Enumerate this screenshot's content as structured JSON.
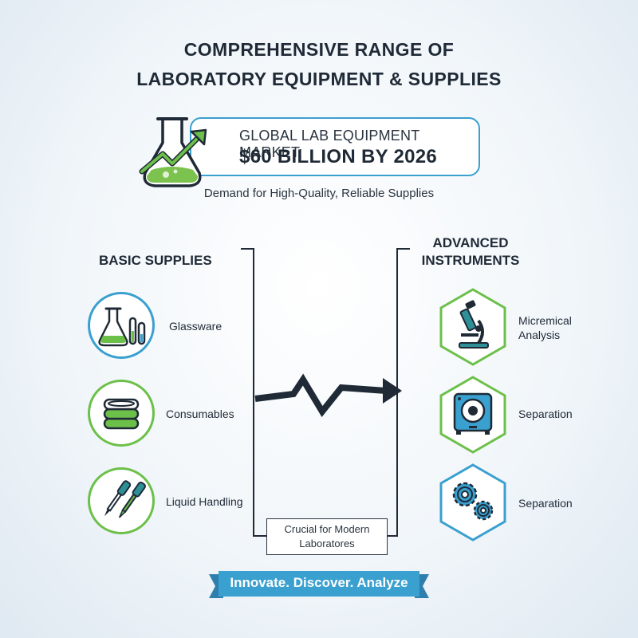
{
  "title": {
    "line1": "COMPREHENSIVE RANGE OF",
    "line2": "LABORATORY EQUIPMENT & SUPPLIES"
  },
  "market": {
    "label": "GLOBAL LAB EQUIPMENT MARKET:",
    "value": "$60 BILLION BY 2026"
  },
  "demand": "Demand for High-Quality, Reliable Supplies",
  "basic": {
    "heading": "BASIC SUPPLIES",
    "items": [
      {
        "label": "Glassware",
        "icon": "glassware-icon"
      },
      {
        "label": "Consumables",
        "icon": "consumables-icon"
      },
      {
        "label": "Liquid Handling",
        "icon": "pipette-icon"
      }
    ]
  },
  "advanced": {
    "heading_line1": "ADVANCED",
    "heading_line2": "INSTRUMENTS",
    "items": [
      {
        "label_line1": "Micremical",
        "label_line2": "Analysis",
        "icon": "microscope-icon"
      },
      {
        "label_line1": "Separation",
        "label_line2": "",
        "icon": "centrifuge-icon"
      },
      {
        "label_line1": "Separation",
        "label_line2": "",
        "icon": "gears-icon"
      }
    ]
  },
  "footer_note": {
    "line1": "Crucial for Modern",
    "line2": "Laboratores"
  },
  "ribbon": "Innovate. Discover. Analyze",
  "colors": {
    "blue": "#3aa0cf",
    "green": "#6cc04a",
    "dark": "#1f2a36",
    "teal": "#2e8f97"
  }
}
